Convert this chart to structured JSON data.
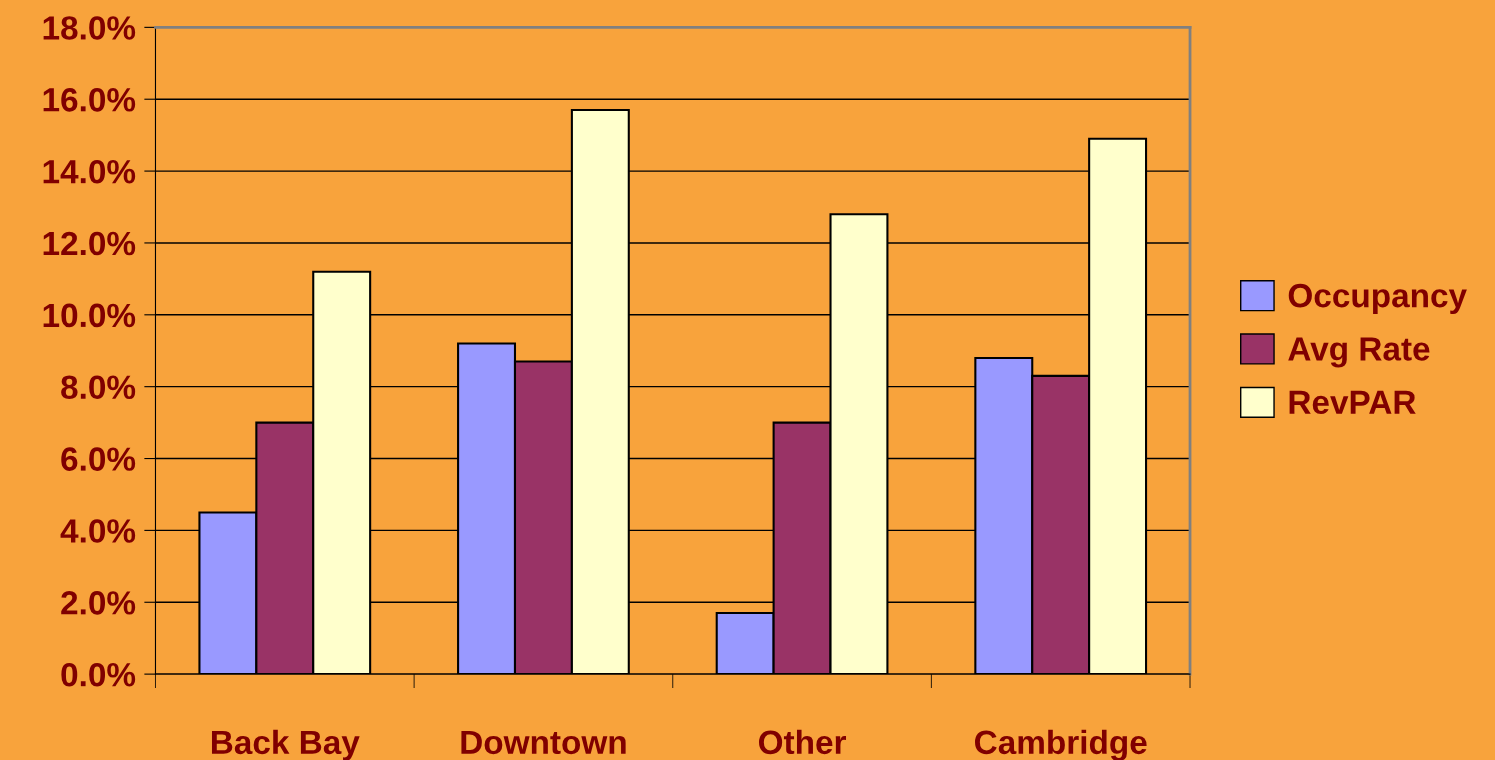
{
  "chart_data": {
    "type": "bar",
    "categories": [
      "Back Bay",
      "Downtown",
      "Other",
      "Cambridge"
    ],
    "series": [
      {
        "name": "Occupancy",
        "color": "#9999ff",
        "values": [
          4.5,
          9.2,
          1.7,
          8.8
        ]
      },
      {
        "name": "Avg Rate",
        "color": "#993366",
        "values": [
          7.0,
          8.7,
          7.0,
          8.3
        ]
      },
      {
        "name": "RevPAR",
        "color": "#ffffcc",
        "values": [
          11.2,
          15.7,
          12.8,
          14.9
        ]
      }
    ],
    "ylim": [
      0,
      18
    ],
    "yticks": [
      {
        "value": 0,
        "label": "0.0%"
      },
      {
        "value": 2,
        "label": "2.0%"
      },
      {
        "value": 4,
        "label": "4.0%"
      },
      {
        "value": 6,
        "label": "6.0%"
      },
      {
        "value": 8,
        "label": "8.0%"
      },
      {
        "value": 10,
        "label": "10.0%"
      },
      {
        "value": 12,
        "label": "12.0%"
      },
      {
        "value": 14,
        "label": "14.0%"
      },
      {
        "value": 16,
        "label": "16.0%"
      },
      {
        "value": 18,
        "label": "18.0%"
      }
    ],
    "grid": "y",
    "legend": "right"
  }
}
